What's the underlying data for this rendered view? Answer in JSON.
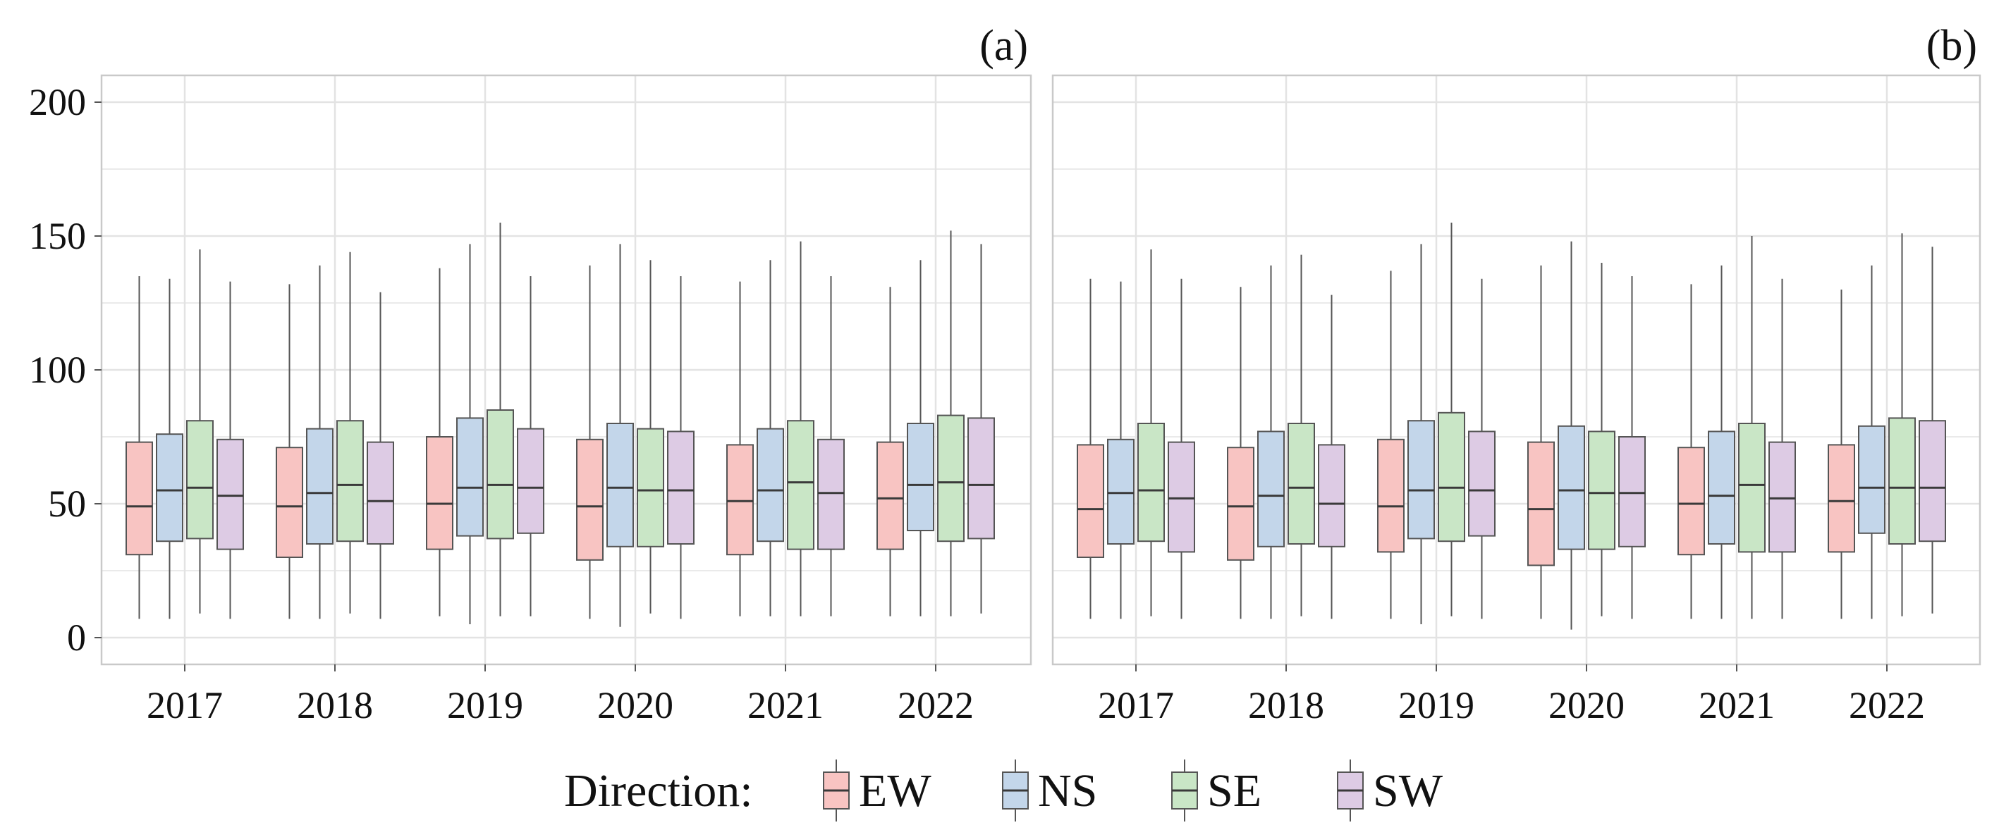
{
  "chart_data": [
    {
      "type": "boxplot",
      "panel_label": "(a)",
      "categories": [
        "2017",
        "2018",
        "2019",
        "2020",
        "2021",
        "2022"
      ],
      "ylim": [
        -10,
        210
      ],
      "yticks": [
        0,
        50,
        100,
        150,
        200
      ],
      "ytick_labels": [
        "0",
        "50",
        "100",
        "150",
        "200"
      ],
      "grid": true,
      "series": [
        {
          "name": "EW",
          "boxes": [
            {
              "min": 7,
              "q1": 31,
              "median": 49,
              "q3": 73,
              "max": 135
            },
            {
              "min": 7,
              "q1": 30,
              "median": 49,
              "q3": 71,
              "max": 132
            },
            {
              "min": 8,
              "q1": 33,
              "median": 50,
              "q3": 75,
              "max": 138
            },
            {
              "min": 7,
              "q1": 29,
              "median": 49,
              "q3": 74,
              "max": 139
            },
            {
              "min": 8,
              "q1": 31,
              "median": 51,
              "q3": 72,
              "max": 133
            },
            {
              "min": 8,
              "q1": 33,
              "median": 52,
              "q3": 73,
              "max": 131
            }
          ]
        },
        {
          "name": "NS",
          "boxes": [
            {
              "min": 7,
              "q1": 36,
              "median": 55,
              "q3": 76,
              "max": 134
            },
            {
              "min": 7,
              "q1": 35,
              "median": 54,
              "q3": 78,
              "max": 139
            },
            {
              "min": 5,
              "q1": 38,
              "median": 56,
              "q3": 82,
              "max": 147
            },
            {
              "min": 4,
              "q1": 34,
              "median": 56,
              "q3": 80,
              "max": 147
            },
            {
              "min": 8,
              "q1": 36,
              "median": 55,
              "q3": 78,
              "max": 141
            },
            {
              "min": 8,
              "q1": 40,
              "median": 57,
              "q3": 80,
              "max": 141
            }
          ]
        },
        {
          "name": "SE",
          "boxes": [
            {
              "min": 9,
              "q1": 37,
              "median": 56,
              "q3": 81,
              "max": 145
            },
            {
              "min": 9,
              "q1": 36,
              "median": 57,
              "q3": 81,
              "max": 144
            },
            {
              "min": 8,
              "q1": 37,
              "median": 57,
              "q3": 85,
              "max": 155
            },
            {
              "min": 9,
              "q1": 34,
              "median": 55,
              "q3": 78,
              "max": 141
            },
            {
              "min": 8,
              "q1": 33,
              "median": 58,
              "q3": 81,
              "max": 148
            },
            {
              "min": 8,
              "q1": 36,
              "median": 58,
              "q3": 83,
              "max": 152
            }
          ]
        },
        {
          "name": "SW",
          "boxes": [
            {
              "min": 7,
              "q1": 33,
              "median": 53,
              "q3": 74,
              "max": 133
            },
            {
              "min": 7,
              "q1": 35,
              "median": 51,
              "q3": 73,
              "max": 129
            },
            {
              "min": 8,
              "q1": 39,
              "median": 56,
              "q3": 78,
              "max": 135
            },
            {
              "min": 7,
              "q1": 35,
              "median": 55,
              "q3": 77,
              "max": 135
            },
            {
              "min": 8,
              "q1": 33,
              "median": 54,
              "q3": 74,
              "max": 135
            },
            {
              "min": 9,
              "q1": 37,
              "median": 57,
              "q3": 82,
              "max": 147
            }
          ]
        }
      ]
    },
    {
      "type": "boxplot",
      "panel_label": "(b)",
      "categories": [
        "2017",
        "2018",
        "2019",
        "2020",
        "2021",
        "2022"
      ],
      "ylim": [
        -10,
        210
      ],
      "yticks": [
        0,
        50,
        100,
        150,
        200
      ],
      "ytick_labels": [
        "",
        "",
        "",
        "",
        ""
      ],
      "grid": true,
      "series": [
        {
          "name": "EW",
          "boxes": [
            {
              "min": 7,
              "q1": 30,
              "median": 48,
              "q3": 72,
              "max": 134
            },
            {
              "min": 7,
              "q1": 29,
              "median": 49,
              "q3": 71,
              "max": 131
            },
            {
              "min": 7,
              "q1": 32,
              "median": 49,
              "q3": 74,
              "max": 137
            },
            {
              "min": 7,
              "q1": 27,
              "median": 48,
              "q3": 73,
              "max": 139
            },
            {
              "min": 7,
              "q1": 31,
              "median": 50,
              "q3": 71,
              "max": 132
            },
            {
              "min": 7,
              "q1": 32,
              "median": 51,
              "q3": 72,
              "max": 130
            }
          ]
        },
        {
          "name": "NS",
          "boxes": [
            {
              "min": 7,
              "q1": 35,
              "median": 54,
              "q3": 74,
              "max": 133
            },
            {
              "min": 7,
              "q1": 34,
              "median": 53,
              "q3": 77,
              "max": 139
            },
            {
              "min": 5,
              "q1": 37,
              "median": 55,
              "q3": 81,
              "max": 147
            },
            {
              "min": 3,
              "q1": 33,
              "median": 55,
              "q3": 79,
              "max": 148
            },
            {
              "min": 7,
              "q1": 35,
              "median": 53,
              "q3": 77,
              "max": 139
            },
            {
              "min": 7,
              "q1": 39,
              "median": 56,
              "q3": 79,
              "max": 139
            }
          ]
        },
        {
          "name": "SE",
          "boxes": [
            {
              "min": 8,
              "q1": 36,
              "median": 55,
              "q3": 80,
              "max": 145
            },
            {
              "min": 8,
              "q1": 35,
              "median": 56,
              "q3": 80,
              "max": 143
            },
            {
              "min": 8,
              "q1": 36,
              "median": 56,
              "q3": 84,
              "max": 155
            },
            {
              "min": 8,
              "q1": 33,
              "median": 54,
              "q3": 77,
              "max": 140
            },
            {
              "min": 7,
              "q1": 32,
              "median": 57,
              "q3": 80,
              "max": 150
            },
            {
              "min": 8,
              "q1": 35,
              "median": 56,
              "q3": 82,
              "max": 151
            }
          ]
        },
        {
          "name": "SW",
          "boxes": [
            {
              "min": 7,
              "q1": 32,
              "median": 52,
              "q3": 73,
              "max": 134
            },
            {
              "min": 7,
              "q1": 34,
              "median": 50,
              "q3": 72,
              "max": 128
            },
            {
              "min": 7,
              "q1": 38,
              "median": 55,
              "q3": 77,
              "max": 134
            },
            {
              "min": 7,
              "q1": 34,
              "median": 54,
              "q3": 75,
              "max": 135
            },
            {
              "min": 7,
              "q1": 32,
              "median": 52,
              "q3": 73,
              "max": 134
            },
            {
              "min": 9,
              "q1": 36,
              "median": 56,
              "q3": 81,
              "max": 146
            }
          ]
        }
      ]
    }
  ],
  "legend": {
    "title": "Direction:",
    "position": "bottom-center",
    "items": [
      {
        "name": "EW",
        "color": "#f8c4c2"
      },
      {
        "name": "NS",
        "color": "#c3d6ea"
      },
      {
        "name": "SE",
        "color": "#c9e6c6"
      },
      {
        "name": "SW",
        "color": "#ddcbe4"
      }
    ]
  },
  "colors": {
    "EW": "#f8c4c2",
    "NS": "#c3d6ea",
    "SE": "#c9e6c6",
    "SW": "#ddcbe4",
    "box_stroke": "#555555",
    "whisker": "#555555",
    "median": "#3a3a3a",
    "grid": "#e3e3e3",
    "panel_border": "#c9c9c9",
    "text": "#111111"
  }
}
